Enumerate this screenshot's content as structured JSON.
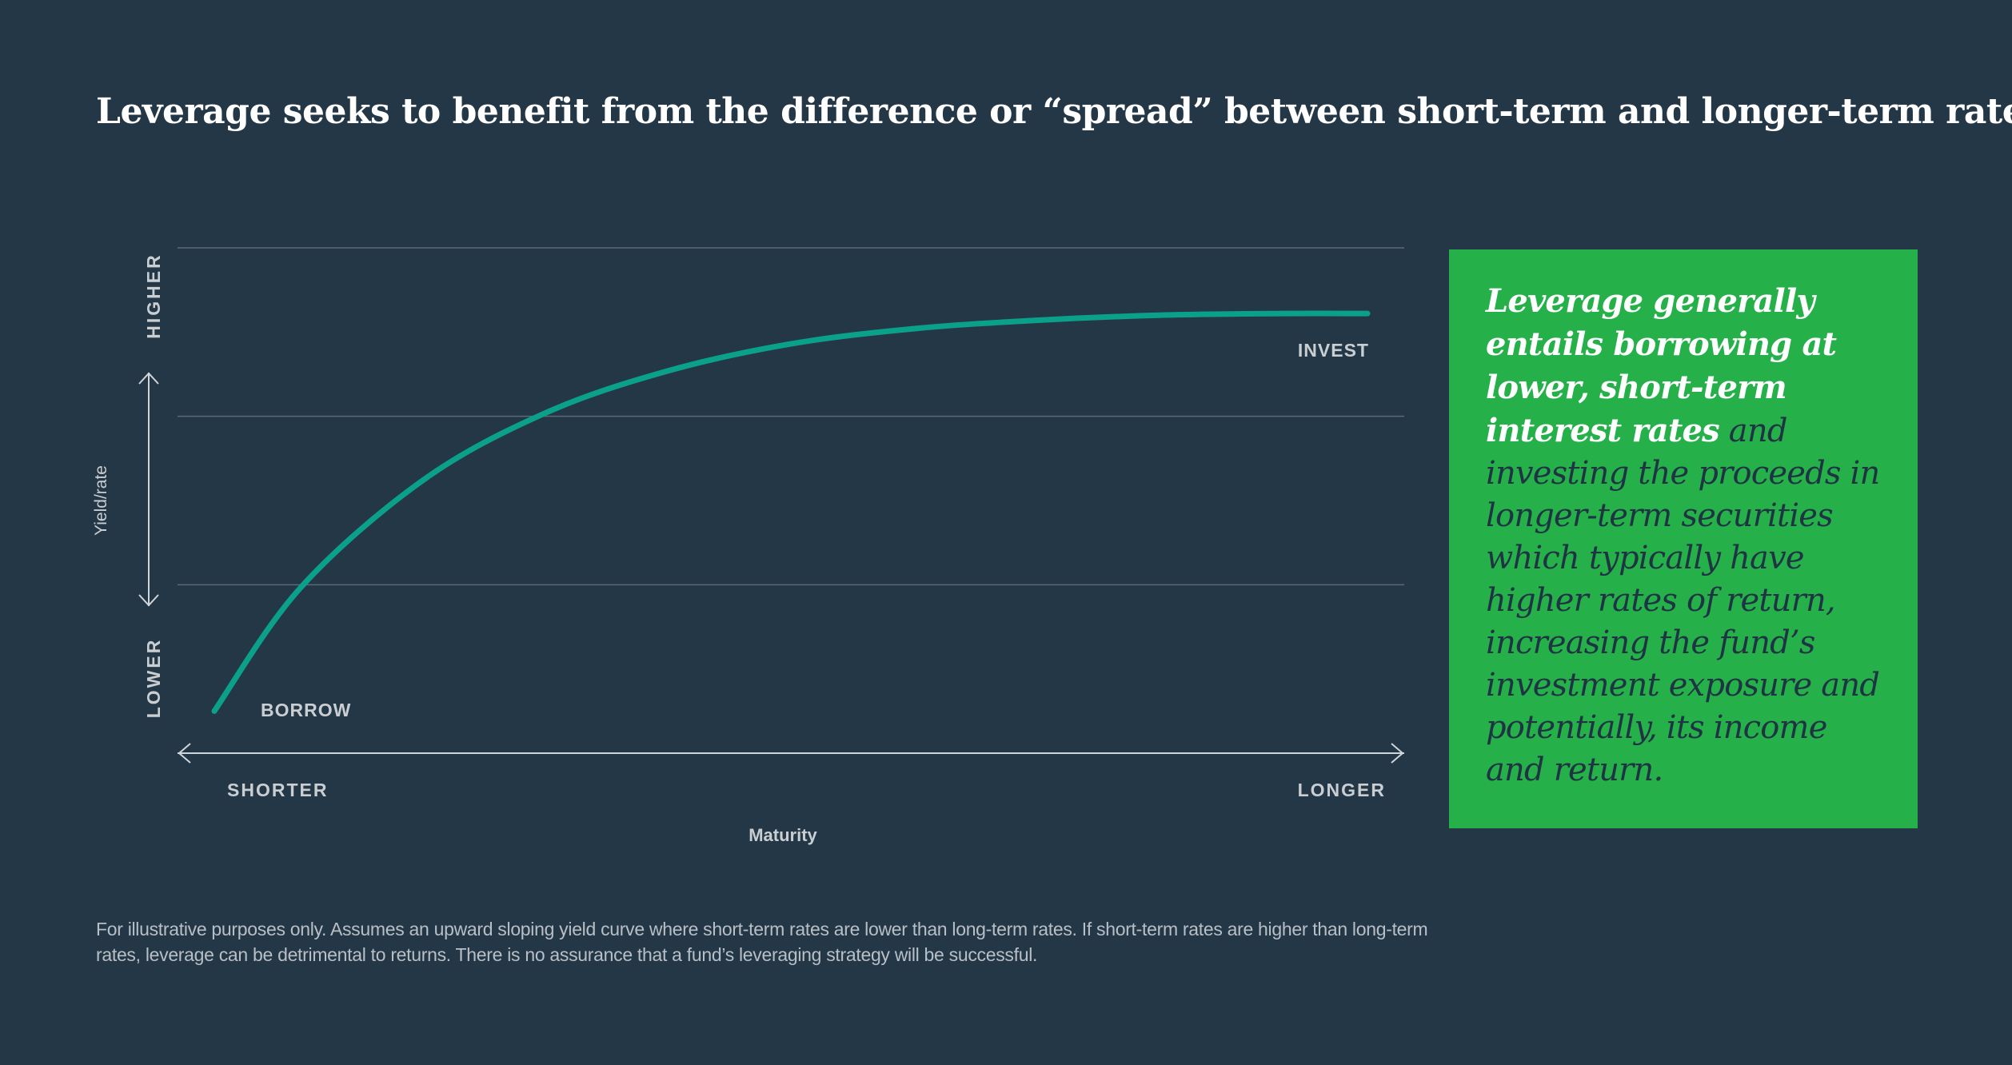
{
  "title": "Leverage seeks to benefit from the difference or “spread” between short-term and longer-term rates",
  "callout": {
    "bold_text": "Leverage generally entails borrowing at lower, short-term interest rates",
    "text": " and investing the proceeds in longer-term securities which typically have higher rates of return, increasing the fund’s investment exposure and potentially, its income and return."
  },
  "footnote": "For illustrative purposes only. Assumes an upward sloping yield curve where short-term rates are lower than long-term rates. If short-term rates are higher than long-term rates, leverage can be detrimental to returns. There is no assurance that a fund’s leveraging strategy will be successful.",
  "colors": {
    "background": "#243746",
    "curve": "#0aa08a",
    "callout_bg": "#25b04a",
    "gridline": "#5a6a78",
    "axis": "#d0d5da"
  },
  "chart_data": {
    "type": "line",
    "title": "",
    "xlabel": "Maturity",
    "ylabel": "Yield/rate",
    "x_tick_labels": [
      "SHORTER",
      "LONGER"
    ],
    "y_tick_labels": [
      "LOWER",
      "HIGHER"
    ],
    "xlim": [
      0,
      1
    ],
    "ylim": [
      0,
      3
    ],
    "grid": true,
    "legend": "none",
    "series": [
      {
        "x": [
          0.03,
          0.1,
          0.2,
          0.3,
          0.4,
          0.5,
          0.6,
          0.7,
          0.8,
          0.9,
          0.97
        ],
        "values": [
          0.25,
          0.98,
          1.62,
          2.02,
          2.27,
          2.43,
          2.52,
          2.57,
          2.6,
          2.61,
          2.61
        ]
      }
    ],
    "annotations": [
      {
        "text": "BORROW",
        "x": 0.07,
        "y": 0.25
      },
      {
        "text": "INVEST",
        "x": 0.97,
        "y": 2.61
      }
    ]
  }
}
